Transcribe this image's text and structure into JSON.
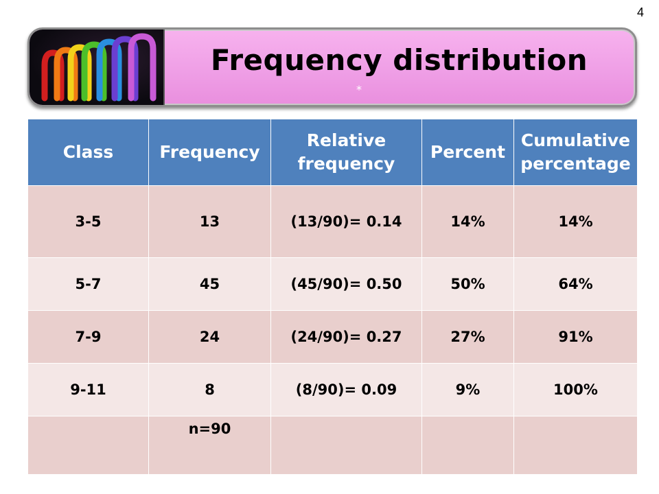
{
  "slide_number": "4",
  "title": "Frequency distribution",
  "title_mark": "*",
  "table": {
    "headers": [
      "Class",
      "Frequency",
      "Relative frequency",
      "Percent",
      "Cumulative percentage"
    ],
    "rows": [
      [
        "3-5",
        "13",
        "(13/90)= 0.14",
        "14%",
        "14%"
      ],
      [
        "5-7",
        "45",
        "(45/90)=   0.50",
        "50%",
        "64%"
      ],
      [
        "7-9",
        "24",
        "(24/90)=   0.27",
        "27%",
        "91%"
      ],
      [
        "9-11",
        "8",
        "(8/90)=   0.09",
        "9%",
        "100%"
      ],
      [
        "",
        "n=90",
        "",
        "",
        ""
      ]
    ]
  },
  "colors": {
    "header_bg": "#4f81bd",
    "row_odd_bg": "#e9cfcd",
    "row_even_bg": "#f4e7e6",
    "banner_bg": "#ef9fe6"
  },
  "decorations": [
    "rainbow-glass-arches-image"
  ]
}
